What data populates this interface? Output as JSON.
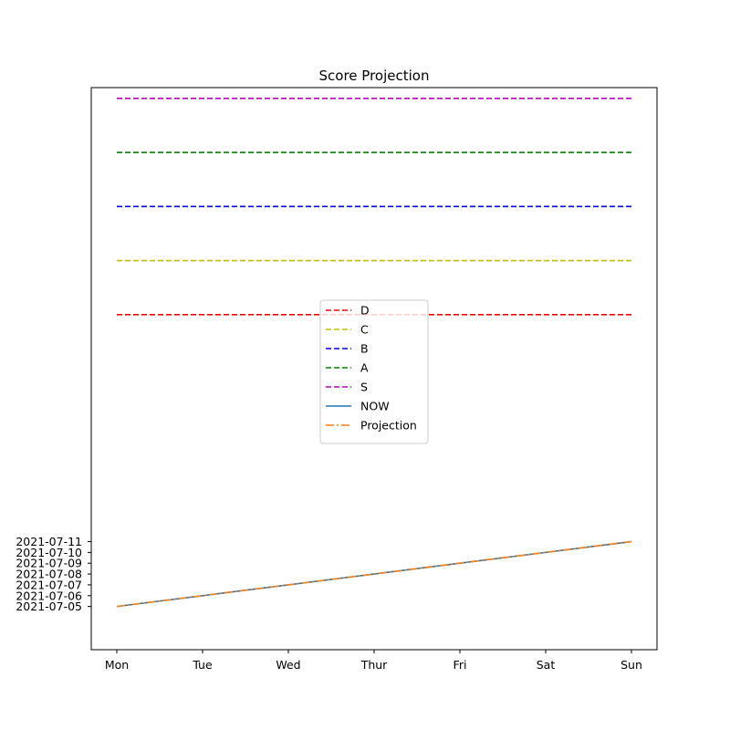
{
  "chart_data": {
    "type": "line",
    "title": "Score Projection",
    "xlabel": "",
    "ylabel": "",
    "categories": [
      "Mon",
      "Tue",
      "Wed",
      "Thur",
      "Fri",
      "Sat",
      "Sun"
    ],
    "y_ticks": [
      "2021-07-05",
      "2021-07-06",
      "2021-07-07",
      "2021-07-08",
      "2021-07-09",
      "2021-07-10",
      "2021-07-11"
    ],
    "ylim": [
      "2021-07-01",
      "2021-08-22"
    ],
    "grid": false,
    "legend_position": "center",
    "series": [
      {
        "name": "D",
        "style": "dashed",
        "color": "#ff0000",
        "values": [
          "2021-08-01",
          "2021-08-01",
          "2021-08-01",
          "2021-08-01",
          "2021-08-01",
          "2021-08-01",
          "2021-08-01"
        ]
      },
      {
        "name": "C",
        "style": "dashed",
        "color": "#bfbf00",
        "values": [
          "2021-08-06",
          "2021-08-06",
          "2021-08-06",
          "2021-08-06",
          "2021-08-06",
          "2021-08-06",
          "2021-08-06"
        ]
      },
      {
        "name": "B",
        "style": "dashed",
        "color": "#0000ff",
        "values": [
          "2021-08-11",
          "2021-08-11",
          "2021-08-11",
          "2021-08-11",
          "2021-08-11",
          "2021-08-11",
          "2021-08-11"
        ]
      },
      {
        "name": "A",
        "style": "dashed",
        "color": "#008000",
        "values": [
          "2021-08-16",
          "2021-08-16",
          "2021-08-16",
          "2021-08-16",
          "2021-08-16",
          "2021-08-16",
          "2021-08-16"
        ]
      },
      {
        "name": "S",
        "style": "dashed",
        "color": "#bf00bf",
        "values": [
          "2021-08-21",
          "2021-08-21",
          "2021-08-21",
          "2021-08-21",
          "2021-08-21",
          "2021-08-21",
          "2021-08-21"
        ]
      },
      {
        "name": "NOW",
        "style": "solid",
        "color": "#1f77b4",
        "values": [
          "2021-07-05",
          "2021-07-06",
          "2021-07-07",
          "2021-07-08",
          "2021-07-09",
          "2021-07-10",
          "2021-07-11"
        ]
      },
      {
        "name": "Projection",
        "style": "dashdot",
        "color": "#ff7f0e",
        "values": [
          "2021-07-05",
          "2021-07-06",
          "2021-07-07",
          "2021-07-08",
          "2021-07-09",
          "2021-07-10",
          "2021-07-11"
        ]
      }
    ]
  }
}
